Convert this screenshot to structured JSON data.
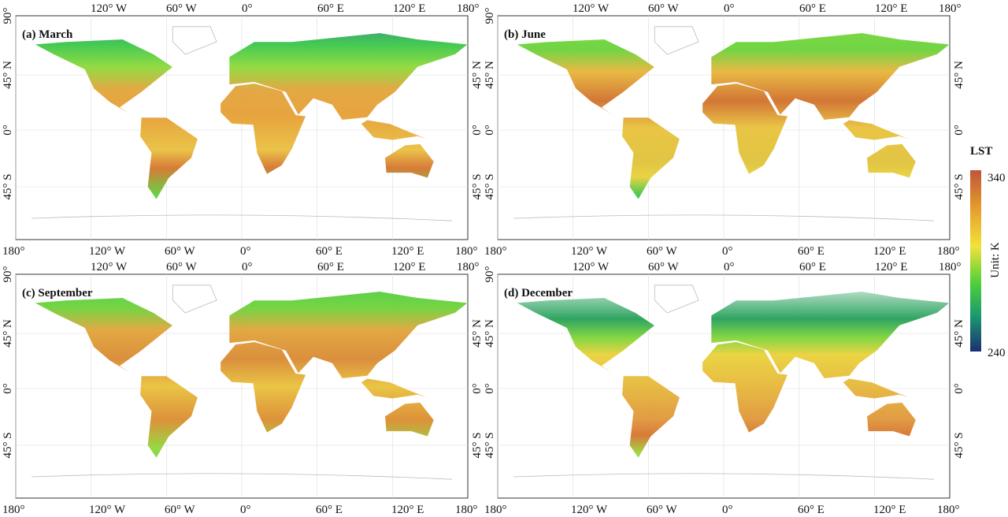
{
  "panels": [
    {
      "title": "(a) March"
    },
    {
      "title": "(b) June"
    },
    {
      "title": "(c) September"
    },
    {
      "title": "(d) December"
    }
  ],
  "lon_labels_top": [
    "120° W",
    "60° W",
    "0°",
    "60° E",
    "120° E",
    "180°"
  ],
  "lon_labels_bottom": [
    "180°",
    "120° W",
    "60° W",
    "0°",
    "60° E",
    "120° E",
    "180°"
  ],
  "lat_labels_left": [
    "90°",
    "45° N",
    "0°",
    "45° S"
  ],
  "lat_labels_right": [
    "45° N",
    "0°",
    "45° S"
  ],
  "colorbar": {
    "title": "LST",
    "max_label": 340,
    "min_label": 240,
    "unit": "Unit: K"
  }
}
